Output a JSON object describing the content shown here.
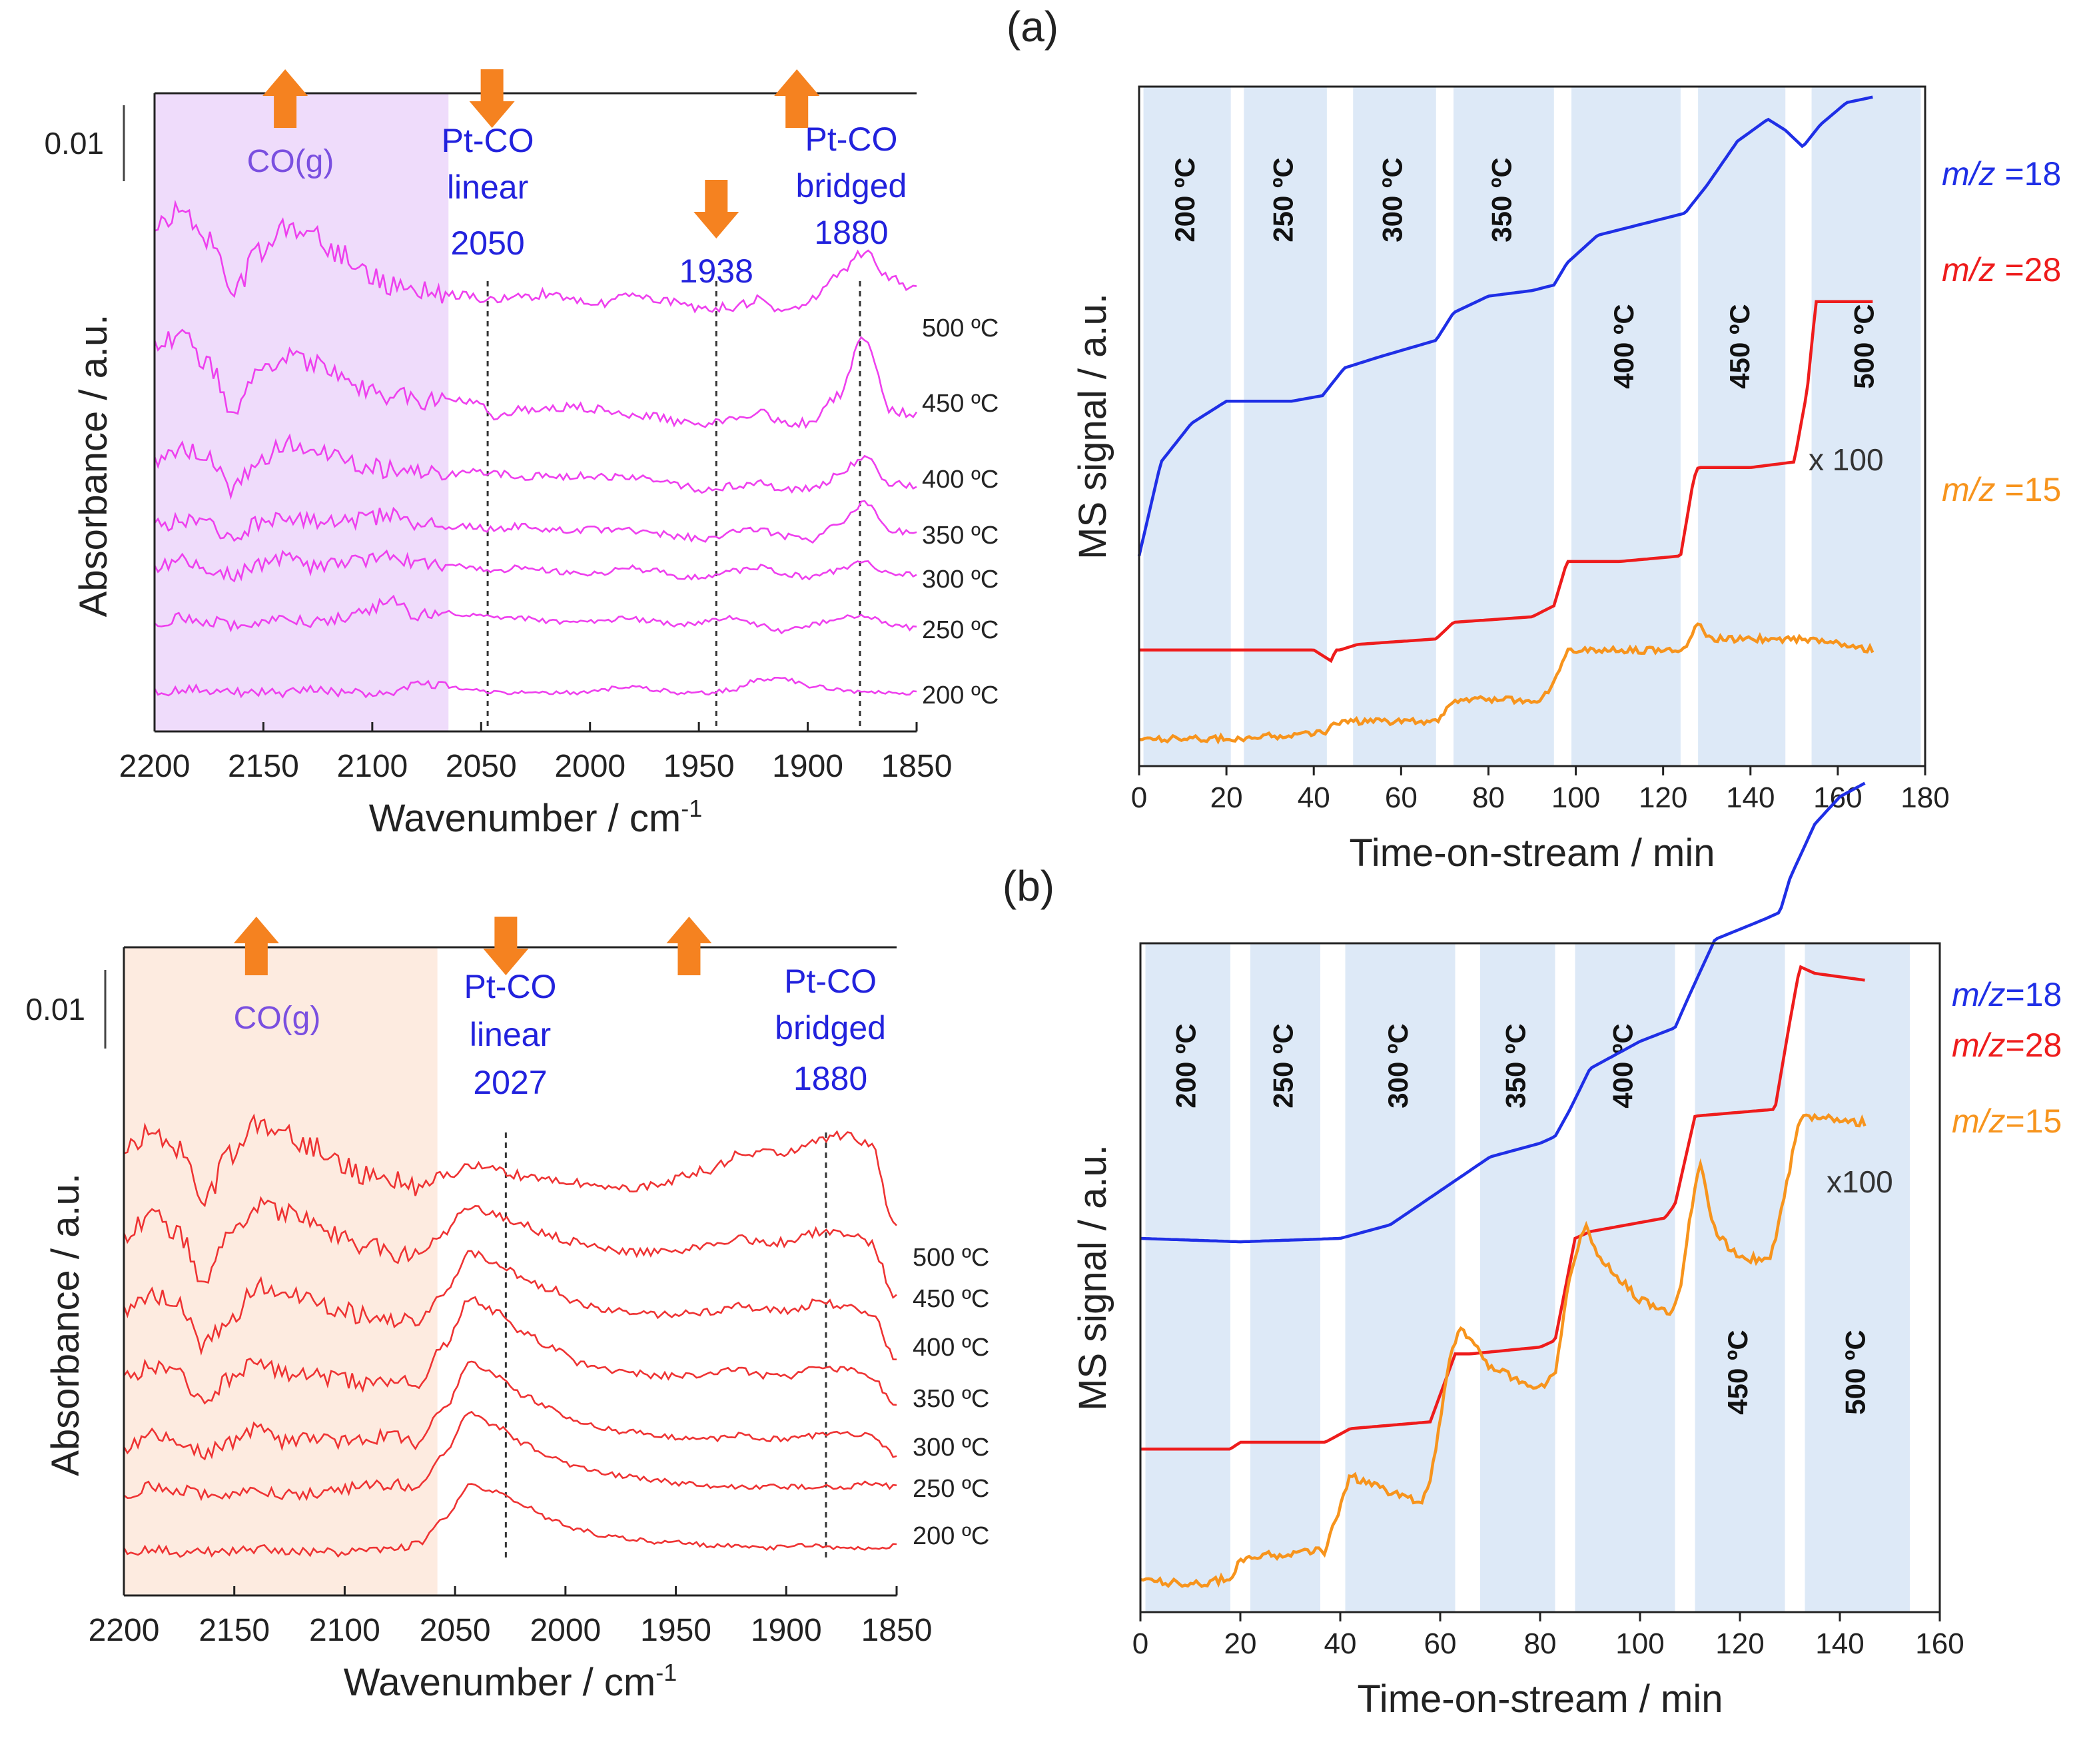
{
  "figure": {
    "label_a": "(a)",
    "label_b": "(b)"
  },
  "colors": {
    "magenta": "#ee40ee",
    "red_line": "#ee3333",
    "ms_blue": "#1f2fe6",
    "ms_red": "#ee1c1c",
    "ms_orange": "#f7941d",
    "arrow": "#f58220",
    "annot_blue": "#2222dd",
    "band": "#dde9f7",
    "shade_a": "#efdcfb",
    "shade_b": "#fdebe0"
  },
  "chart_data": [
    {
      "id": "ir-a",
      "type": "line",
      "panel": "(a)",
      "xlabel": "Wavenumber / cm",
      "xlabel_sup": "-1",
      "ylabel": "Absorbance / a.u.",
      "xlim": [
        2200,
        1850
      ],
      "xticks": [
        2200,
        2150,
        2100,
        2050,
        2000,
        1950,
        1900,
        1850
      ],
      "scale_bar": "0.01",
      "shaded_region": [
        2200,
        2065
      ],
      "shaded_label": "CO(g)",
      "vlines": [
        2047,
        1942,
        1876
      ],
      "annotations": [
        {
          "lines": [
            "Pt-CO",
            "linear",
            "2050"
          ],
          "x": 2047
        },
        {
          "lines": [
            "1938"
          ],
          "x": 1942
        },
        {
          "lines": [
            "Pt-CO",
            "bridged",
            "1880"
          ],
          "x": 1880
        }
      ],
      "arrows": [
        {
          "x": 2140,
          "dir": "up"
        },
        {
          "x": 2045,
          "dir": "down"
        },
        {
          "x": 1942,
          "dir": "down"
        },
        {
          "x": 1905,
          "dir": "up"
        }
      ],
      "series": [
        {
          "name": "200 ºC",
          "values": [
            1.0,
            1.05,
            1.05,
            1.0,
            1.0,
            1.0,
            1.05,
            1.0,
            1.0,
            1.0,
            1.15,
            1.1,
            1.05,
            1.0,
            1.0,
            1.0,
            1.0,
            1.05,
            1.1,
            1.05,
            1.0,
            1.0,
            1.05,
            1.2,
            1.2,
            1.1,
            1.05,
            1.0,
            1.0,
            1.0
          ]
        },
        {
          "name": "250 ºC",
          "values": [
            1.15,
            1.2,
            1.15,
            1.1,
            1.15,
            1.2,
            1.15,
            1.2,
            1.3,
            1.45,
            1.25,
            1.3,
            1.25,
            1.2,
            1.2,
            1.15,
            1.15,
            1.15,
            1.2,
            1.15,
            1.1,
            1.15,
            1.2,
            1.1,
            1.0,
            1.1,
            1.2,
            1.25,
            1.1,
            1.05
          ]
        },
        {
          "name": "300 ºC",
          "values": [
            1.2,
            1.3,
            1.15,
            1.1,
            1.25,
            1.35,
            1.2,
            1.25,
            1.3,
            1.4,
            1.25,
            1.25,
            1.2,
            1.15,
            1.2,
            1.15,
            1.1,
            1.1,
            1.2,
            1.15,
            1.05,
            1.05,
            1.15,
            1.2,
            1.1,
            1.05,
            1.15,
            1.3,
            1.1,
            1.1
          ]
        },
        {
          "name": "350 ºC",
          "values": [
            1.2,
            1.3,
            1.2,
            1.05,
            1.25,
            1.35,
            1.3,
            1.25,
            1.3,
            1.4,
            1.25,
            1.2,
            1.2,
            1.15,
            1.2,
            1.15,
            1.15,
            1.15,
            1.15,
            1.1,
            1.05,
            1.0,
            1.1,
            1.15,
            1.05,
            1.0,
            1.2,
            1.55,
            1.15,
            1.1
          ]
        },
        {
          "name": "400 ºC",
          "values": [
            1.4,
            1.65,
            1.45,
            1.0,
            1.45,
            1.7,
            1.6,
            1.5,
            1.35,
            1.3,
            1.3,
            1.2,
            1.3,
            1.25,
            1.2,
            1.2,
            1.2,
            1.2,
            1.2,
            1.15,
            1.05,
            1.0,
            1.05,
            1.1,
            1.0,
            1.0,
            1.2,
            1.5,
            1.1,
            1.05
          ]
        },
        {
          "name": "450 ºC",
          "values": [
            2.3,
            2.4,
            2.0,
            1.3,
            1.8,
            2.1,
            2.0,
            1.8,
            1.6,
            1.5,
            1.45,
            1.4,
            1.45,
            1.2,
            1.3,
            1.3,
            1.35,
            1.3,
            1.2,
            1.2,
            1.1,
            1.1,
            1.15,
            1.25,
            1.1,
            1.1,
            1.5,
            2.4,
            1.3,
            1.2
          ]
        },
        {
          "name": "500 ºC",
          "values": [
            2.6,
            2.9,
            2.4,
            1.6,
            2.2,
            2.55,
            2.5,
            2.2,
            1.9,
            1.7,
            1.65,
            1.6,
            1.55,
            1.5,
            1.55,
            1.6,
            1.5,
            1.45,
            1.6,
            1.5,
            1.45,
            1.35,
            1.4,
            1.5,
            1.3,
            1.5,
            1.9,
            2.2,
            1.8,
            1.65
          ]
        }
      ]
    },
    {
      "id": "ms-a",
      "type": "line",
      "panel": "(a)",
      "xlabel": "Time-on-stream / min",
      "ylabel": "MS signal / a.u.",
      "xlim": [
        0,
        180
      ],
      "xticks": [
        0,
        20,
        40,
        60,
        80,
        100,
        120,
        140,
        160,
        180
      ],
      "bands": [
        {
          "x0": 1,
          "x1": 21,
          "label": "200 ºC",
          "pos": "top"
        },
        {
          "x0": 24,
          "x1": 43,
          "label": "250 ºC",
          "pos": "top"
        },
        {
          "x0": 49,
          "x1": 68,
          "label": "300 ºC",
          "pos": "top"
        },
        {
          "x0": 72,
          "x1": 95,
          "label": "350 ºC",
          "pos": "top"
        },
        {
          "x0": 99,
          "x1": 124,
          "label": "400 ºC",
          "pos": "mid"
        },
        {
          "x0": 128,
          "x1": 148,
          "label": "450 ºC",
          "pos": "mid"
        },
        {
          "x0": 154,
          "x1": 179,
          "label": "500 ºC",
          "pos": "mid"
        }
      ],
      "scale_note": "x 100",
      "series": [
        {
          "name": "m/z =18",
          "x": [
            0,
            5,
            12,
            20,
            25,
            35,
            42,
            47,
            55,
            68,
            72,
            80,
            90,
            95,
            98,
            105,
            115,
            125,
            130,
            137,
            144,
            148,
            152,
            156,
            162,
            168
          ],
          "values": [
            0.38,
            0.55,
            0.62,
            0.66,
            0.66,
            0.66,
            0.67,
            0.72,
            0.74,
            0.77,
            0.82,
            0.85,
            0.86,
            0.87,
            0.91,
            0.96,
            0.98,
            1.0,
            1.05,
            1.13,
            1.17,
            1.15,
            1.12,
            1.16,
            1.2,
            1.21
          ]
        },
        {
          "name": "m/z =28",
          "x": [
            0,
            20,
            40,
            44,
            45,
            46,
            50,
            68,
            72,
            90,
            95,
            98,
            110,
            124,
            127,
            128,
            140,
            150,
            153,
            155,
            160,
            168
          ],
          "values": [
            0.21,
            0.21,
            0.21,
            0.19,
            0.21,
            0.21,
            0.22,
            0.23,
            0.26,
            0.27,
            0.29,
            0.37,
            0.37,
            0.38,
            0.52,
            0.54,
            0.54,
            0.55,
            0.68,
            0.84,
            0.84,
            0.84
          ]
        },
        {
          "name": "m/z =15",
          "x": [
            0,
            20,
            42,
            46,
            68,
            72,
            92,
            95,
            98,
            110,
            125,
            128,
            130,
            140,
            155,
            168
          ],
          "values": [
            0.05,
            0.05,
            0.06,
            0.08,
            0.08,
            0.12,
            0.12,
            0.15,
            0.21,
            0.21,
            0.21,
            0.26,
            0.23,
            0.23,
            0.23,
            0.21
          ]
        }
      ]
    },
    {
      "id": "ir-b",
      "type": "line",
      "panel": "(b)",
      "xlabel": "Wavenumber / cm",
      "xlabel_sup": "-1",
      "ylabel": "Absorbance / a.u.",
      "xlim": [
        2200,
        1850
      ],
      "xticks": [
        2200,
        2150,
        2100,
        2050,
        2000,
        1950,
        1900,
        1850
      ],
      "scale_bar": "0.01",
      "shaded_region": [
        2200,
        2058
      ],
      "shaded_label": "CO(g)",
      "vlines": [
        2027,
        1882
      ],
      "annotations": [
        {
          "lines": [
            "Pt-CO",
            "linear",
            "2027"
          ],
          "x": 2025
        },
        {
          "lines": [
            "Pt-CO",
            "bridged",
            "1880"
          ],
          "x": 1880
        }
      ],
      "arrows": [
        {
          "x": 2140,
          "dir": "up"
        },
        {
          "x": 2027,
          "dir": "down"
        },
        {
          "x": 1944,
          "dir": "up"
        }
      ],
      "series": [
        {
          "name": "200 ºC",
          "values": [
            1.0,
            1.05,
            1.0,
            1.0,
            1.0,
            1.05,
            1.0,
            1.0,
            1.0,
            1.05,
            1.05,
            1.1,
            1.5,
            2.0,
            1.9,
            1.7,
            1.5,
            1.35,
            1.25,
            1.2,
            1.15,
            1.15,
            1.1,
            1.1,
            1.05,
            1.1,
            1.1,
            1.05,
            1.05,
            1.1
          ]
        },
        {
          "name": "250 ºC",
          "values": [
            1.2,
            1.3,
            1.25,
            1.2,
            1.2,
            1.25,
            1.2,
            1.2,
            1.25,
            1.3,
            1.35,
            1.3,
            1.8,
            2.4,
            2.2,
            1.95,
            1.75,
            1.6,
            1.5,
            1.45,
            1.4,
            1.35,
            1.3,
            1.3,
            1.3,
            1.3,
            1.3,
            1.3,
            1.35,
            1.3
          ]
        },
        {
          "name": "300 ºC",
          "values": [
            1.4,
            1.6,
            1.5,
            1.35,
            1.5,
            1.7,
            1.5,
            1.55,
            1.5,
            1.55,
            1.6,
            1.5,
            2.0,
            2.7,
            2.5,
            2.2,
            2.0,
            1.8,
            1.7,
            1.65,
            1.6,
            1.55,
            1.55,
            1.6,
            1.55,
            1.55,
            1.6,
            1.65,
            1.6,
            1.3
          ]
        },
        {
          "name": "350 ºC",
          "values": [
            1.8,
            2.0,
            1.85,
            1.5,
            1.8,
            2.1,
            1.9,
            1.85,
            1.8,
            1.75,
            1.8,
            1.7,
            2.3,
            3.0,
            2.8,
            2.5,
            2.3,
            2.05,
            1.95,
            1.9,
            1.85,
            1.85,
            1.85,
            1.95,
            1.85,
            1.85,
            1.95,
            1.95,
            1.85,
            1.4
          ]
        },
        {
          "name": "400 ºC",
          "values": [
            2.1,
            2.4,
            2.2,
            1.6,
            2.0,
            2.5,
            2.4,
            2.3,
            2.15,
            2.05,
            2.0,
            1.95,
            2.4,
            3.0,
            2.85,
            2.6,
            2.45,
            2.25,
            2.15,
            2.1,
            2.05,
            2.1,
            2.1,
            2.2,
            2.15,
            2.1,
            2.25,
            2.2,
            2.1,
            1.4
          ]
        },
        {
          "name": "450 ºC",
          "values": [
            2.55,
            2.85,
            2.6,
            1.9,
            2.5,
            3.0,
            2.9,
            2.75,
            2.55,
            2.4,
            2.3,
            2.2,
            2.6,
            3.0,
            2.85,
            2.7,
            2.55,
            2.45,
            2.35,
            2.3,
            2.3,
            2.35,
            2.4,
            2.5,
            2.45,
            2.45,
            2.6,
            2.6,
            2.45,
            1.6
          ]
        },
        {
          "name": "500 ºC",
          "values": [
            3.0,
            3.3,
            3.0,
            2.2,
            2.9,
            3.35,
            3.25,
            3.05,
            2.8,
            2.6,
            2.55,
            2.45,
            2.6,
            2.75,
            2.7,
            2.6,
            2.55,
            2.5,
            2.45,
            2.4,
            2.45,
            2.6,
            2.7,
            2.9,
            2.95,
            2.95,
            3.15,
            3.2,
            3.05,
            1.8
          ]
        }
      ]
    },
    {
      "id": "ms-b",
      "type": "line",
      "panel": "(b)",
      "xlabel": "Time-on-stream / min",
      "ylabel": "MS signal / a.u.",
      "xlim": [
        0,
        160
      ],
      "xticks": [
        0,
        20,
        40,
        60,
        80,
        100,
        120,
        140,
        160
      ],
      "bands": [
        {
          "x0": 1,
          "x1": 18,
          "label": "200 ºC",
          "pos": "top"
        },
        {
          "x0": 22,
          "x1": 36,
          "label": "250 ºC",
          "pos": "top"
        },
        {
          "x0": 41,
          "x1": 63,
          "label": "300 ºC",
          "pos": "top"
        },
        {
          "x0": 68,
          "x1": 83,
          "label": "350 ºC",
          "pos": "top"
        },
        {
          "x0": 87,
          "x1": 107,
          "label": "400 ºC",
          "pos": "top"
        },
        {
          "x0": 111,
          "x1": 129,
          "label": "450 ºC",
          "pos": "low"
        },
        {
          "x0": 133,
          "x1": 154,
          "label": "500 ºC",
          "pos": "low"
        }
      ],
      "scale_note": "x100",
      "series": [
        {
          "name": "m/z=18",
          "x": [
            0,
            20,
            40,
            50,
            60,
            70,
            80,
            83,
            86,
            90,
            100,
            107,
            110,
            115,
            125,
            128,
            130,
            135,
            140,
            145
          ],
          "values": [
            0.55,
            0.545,
            0.55,
            0.57,
            0.62,
            0.67,
            0.69,
            0.7,
            0.74,
            0.8,
            0.84,
            0.86,
            0.91,
            0.99,
            1.02,
            1.03,
            1.08,
            1.16,
            1.2,
            1.22
          ]
        },
        {
          "name": "m/z=28",
          "x": [
            0,
            18,
            20,
            37,
            42,
            58,
            60,
            63,
            66,
            80,
            83,
            87,
            90,
            105,
            107,
            111,
            127,
            130,
            132,
            135,
            145
          ],
          "values": [
            0.24,
            0.24,
            0.25,
            0.25,
            0.27,
            0.28,
            0.32,
            0.38,
            0.38,
            0.39,
            0.4,
            0.55,
            0.56,
            0.58,
            0.6,
            0.73,
            0.74,
            0.87,
            0.95,
            0.94,
            0.93
          ]
        },
        {
          "name": "m/z=15",
          "x": [
            0,
            10,
            18,
            20,
            35,
            37,
            42,
            45,
            56,
            58,
            62,
            64,
            70,
            80,
            83,
            86,
            89,
            92,
            100,
            106,
            108,
            110,
            112,
            115,
            120,
            126,
            128,
            132,
            135,
            145
          ],
          "values": [
            0.05,
            0.04,
            0.05,
            0.08,
            0.09,
            0.09,
            0.2,
            0.19,
            0.16,
            0.19,
            0.38,
            0.42,
            0.36,
            0.33,
            0.35,
            0.5,
            0.57,
            0.52,
            0.46,
            0.44,
            0.47,
            0.58,
            0.66,
            0.56,
            0.52,
            0.52,
            0.58,
            0.73,
            0.73,
            0.72
          ]
        }
      ]
    }
  ]
}
